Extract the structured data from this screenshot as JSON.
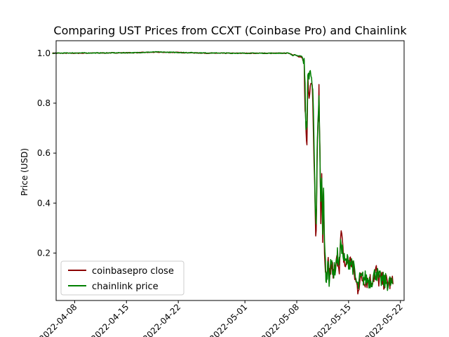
{
  "chart_data": {
    "type": "line",
    "title": "Comparing UST Prices from CCXT (Coinbase Pro) and Chainlink",
    "xlabel": "",
    "ylabel": "Price (USD)",
    "x_axis_type": "date",
    "xlim": [
      "2022-04-05T12:00",
      "2022-05-22T12:00"
    ],
    "ylim": [
      0.01,
      1.05
    ],
    "xticks": [
      "2022-04-08",
      "2022-04-15",
      "2022-04-22",
      "2022-05-01",
      "2022-05-08",
      "2022-05-15",
      "2022-05-22"
    ],
    "xtick_labels": [
      "2022-04-08",
      "2022-04-15",
      "2022-04-22",
      "2022-05-01",
      "2022-05-08",
      "2022-05-15",
      "2022-05-22"
    ],
    "yticks": [
      0.2,
      0.4,
      0.6,
      0.8,
      1.0
    ],
    "ytick_labels": [
      "0.2",
      "0.4",
      "0.6",
      "0.8",
      "1.0"
    ],
    "grid": false,
    "legend_position": "lower-left",
    "series": [
      {
        "name": "coinbasepro close",
        "color": "#8b0000",
        "points": [
          [
            "2022-04-05T00:00",
            1.0
          ],
          [
            "2022-04-08T00:00",
            1.0
          ],
          [
            "2022-04-12T00:00",
            1.001
          ],
          [
            "2022-04-16T00:00",
            1.002
          ],
          [
            "2022-04-19T00:00",
            1.004
          ],
          [
            "2022-04-22T00:00",
            1.003
          ],
          [
            "2022-04-26T00:00",
            1.0
          ],
          [
            "2022-04-30T00:00",
            1.0
          ],
          [
            "2022-05-04T00:00",
            1.0
          ],
          [
            "2022-05-07T00:00",
            1.0
          ],
          [
            "2022-05-07T12:00",
            0.993
          ],
          [
            "2022-05-07T18:00",
            0.995
          ],
          [
            "2022-05-08T06:00",
            0.985
          ],
          [
            "2022-05-08T12:00",
            0.985
          ],
          [
            "2022-05-08T18:00",
            0.98
          ],
          [
            "2022-05-09T00:00",
            0.95
          ],
          [
            "2022-05-09T03:00",
            0.8
          ],
          [
            "2022-05-09T06:00",
            0.68
          ],
          [
            "2022-05-09T09:00",
            0.63
          ],
          [
            "2022-05-09T12:00",
            0.91
          ],
          [
            "2022-05-09T16:00",
            0.85
          ],
          [
            "2022-05-09T20:00",
            0.88
          ],
          [
            "2022-05-10T00:00",
            0.9
          ],
          [
            "2022-05-10T04:00",
            0.83
          ],
          [
            "2022-05-10T08:00",
            0.6
          ],
          [
            "2022-05-10T12:00",
            0.33
          ],
          [
            "2022-05-10T15:00",
            0.27
          ],
          [
            "2022-05-10T18:00",
            0.57
          ],
          [
            "2022-05-10T21:00",
            0.7
          ],
          [
            "2022-05-11T00:00",
            0.84
          ],
          [
            "2022-05-11T03:00",
            0.62
          ],
          [
            "2022-05-11T06:00",
            0.35
          ],
          [
            "2022-05-11T09:00",
            0.5
          ],
          [
            "2022-05-11T12:00",
            0.26
          ],
          [
            "2022-05-11T15:00",
            0.43
          ],
          [
            "2022-05-11T18:00",
            0.2
          ],
          [
            "2022-05-11T21:00",
            0.14
          ],
          [
            "2022-05-12T00:00",
            0.06
          ],
          [
            "2022-05-12T03:00",
            0.12
          ],
          [
            "2022-05-12T06:00",
            0.16
          ],
          [
            "2022-05-12T09:00",
            0.09
          ],
          [
            "2022-05-12T12:00",
            0.12
          ],
          [
            "2022-05-12T18:00",
            0.15
          ],
          [
            "2022-05-13T00:00",
            0.11
          ],
          [
            "2022-05-13T06:00",
            0.14
          ],
          [
            "2022-05-13T12:00",
            0.18
          ],
          [
            "2022-05-13T18:00",
            0.15
          ],
          [
            "2022-05-14T00:00",
            0.28
          ],
          [
            "2022-05-14T06:00",
            0.2
          ],
          [
            "2022-05-14T12:00",
            0.15
          ],
          [
            "2022-05-15T00:00",
            0.17
          ],
          [
            "2022-05-15T12:00",
            0.16
          ],
          [
            "2022-05-16T00:00",
            0.08
          ],
          [
            "2022-05-16T06:00",
            0.06
          ],
          [
            "2022-05-16T12:00",
            0.09
          ],
          [
            "2022-05-17T00:00",
            0.1
          ],
          [
            "2022-05-17T12:00",
            0.09
          ],
          [
            "2022-05-18T00:00",
            0.09
          ],
          [
            "2022-05-18T12:00",
            0.11
          ],
          [
            "2022-05-18T18:00",
            0.13
          ],
          [
            "2022-05-19T00:00",
            0.095
          ],
          [
            "2022-05-19T12:00",
            0.09
          ],
          [
            "2022-05-20T00:00",
            0.085
          ],
          [
            "2022-05-20T12:00",
            0.08
          ],
          [
            "2022-05-21T00:00",
            0.075
          ]
        ]
      },
      {
        "name": "chainlink price",
        "color": "#008000",
        "points": [
          [
            "2022-04-05T00:00",
            1.0
          ],
          [
            "2022-04-08T00:00",
            1.001
          ],
          [
            "2022-04-12T00:00",
            1.001
          ],
          [
            "2022-04-16T00:00",
            1.002
          ],
          [
            "2022-04-19T00:00",
            1.005
          ],
          [
            "2022-04-22T00:00",
            1.003
          ],
          [
            "2022-04-26T00:00",
            1.001
          ],
          [
            "2022-04-30T00:00",
            1.0
          ],
          [
            "2022-05-04T00:00",
            1.0
          ],
          [
            "2022-05-07T00:00",
            1.0
          ],
          [
            "2022-05-07T12:00",
            0.99
          ],
          [
            "2022-05-07T18:00",
            0.995
          ],
          [
            "2022-05-08T06:00",
            0.988
          ],
          [
            "2022-05-08T12:00",
            0.99
          ],
          [
            "2022-05-08T18:00",
            0.985
          ],
          [
            "2022-05-09T00:00",
            0.96
          ],
          [
            "2022-05-09T03:00",
            0.85
          ],
          [
            "2022-05-09T06:00",
            0.72
          ],
          [
            "2022-05-09T09:00",
            0.68
          ],
          [
            "2022-05-09T12:00",
            0.94
          ],
          [
            "2022-05-09T16:00",
            0.9
          ],
          [
            "2022-05-09T20:00",
            0.92
          ],
          [
            "2022-05-10T00:00",
            0.93
          ],
          [
            "2022-05-10T04:00",
            0.86
          ],
          [
            "2022-05-10T08:00",
            0.63
          ],
          [
            "2022-05-10T12:00",
            0.35
          ],
          [
            "2022-05-10T15:00",
            0.3
          ],
          [
            "2022-05-10T18:00",
            0.6
          ],
          [
            "2022-05-10T21:00",
            0.72
          ],
          [
            "2022-05-11T00:00",
            0.82
          ],
          [
            "2022-05-11T03:00",
            0.6
          ],
          [
            "2022-05-11T06:00",
            0.38
          ],
          [
            "2022-05-11T09:00",
            0.52
          ],
          [
            "2022-05-11T12:00",
            0.3
          ],
          [
            "2022-05-11T15:00",
            0.48
          ],
          [
            "2022-05-11T18:00",
            0.22
          ],
          [
            "2022-05-11T21:00",
            0.16
          ],
          [
            "2022-05-12T00:00",
            0.07
          ],
          [
            "2022-05-12T03:00",
            0.13
          ],
          [
            "2022-05-12T06:00",
            0.17
          ],
          [
            "2022-05-12T09:00",
            0.1
          ],
          [
            "2022-05-12T12:00",
            0.13
          ],
          [
            "2022-05-12T18:00",
            0.16
          ],
          [
            "2022-05-13T00:00",
            0.12
          ],
          [
            "2022-05-13T06:00",
            0.15
          ],
          [
            "2022-05-13T12:00",
            0.19
          ],
          [
            "2022-05-13T18:00",
            0.16
          ],
          [
            "2022-05-14T00:00",
            0.25
          ],
          [
            "2022-05-14T06:00",
            0.19
          ],
          [
            "2022-05-14T12:00",
            0.16
          ],
          [
            "2022-05-15T00:00",
            0.17
          ],
          [
            "2022-05-15T12:00",
            0.16
          ],
          [
            "2022-05-16T00:00",
            0.09
          ],
          [
            "2022-05-16T06:00",
            0.06
          ],
          [
            "2022-05-16T12:00",
            0.09
          ],
          [
            "2022-05-17T00:00",
            0.1
          ],
          [
            "2022-05-17T12:00",
            0.095
          ],
          [
            "2022-05-18T00:00",
            0.09
          ],
          [
            "2022-05-18T12:00",
            0.11
          ],
          [
            "2022-05-18T18:00",
            0.13
          ],
          [
            "2022-05-19T00:00",
            0.1
          ],
          [
            "2022-05-19T12:00",
            0.09
          ],
          [
            "2022-05-20T00:00",
            0.085
          ],
          [
            "2022-05-20T12:00",
            0.08
          ],
          [
            "2022-05-21T00:00",
            0.078
          ]
        ]
      }
    ]
  }
}
